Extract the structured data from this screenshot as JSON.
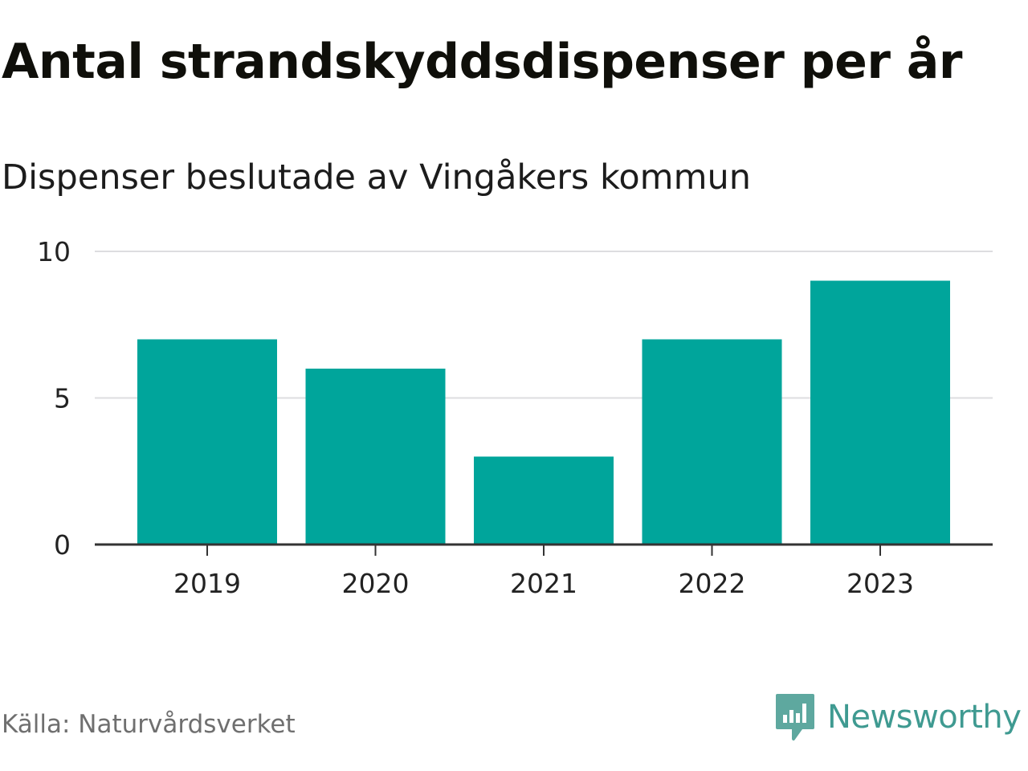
{
  "colors": {
    "bar": "#00A59B",
    "grid": "#dddde0",
    "axis": "#333333",
    "tick_text": "#222222",
    "brand": "#3f9a91"
  },
  "chart_data": {
    "type": "bar",
    "title": "Antal strandskyddsdispenser per år",
    "subtitle": "Dispenser beslutade av Vingåkers kommun",
    "categories": [
      "2019",
      "2020",
      "2021",
      "2022",
      "2023"
    ],
    "values": [
      7,
      6,
      3,
      7,
      9
    ],
    "ylim": [
      0,
      10
    ],
    "yticks": [
      0,
      5,
      10
    ],
    "ytick_labels": [
      "0",
      "5",
      "10"
    ],
    "xlabel": "",
    "ylabel": "",
    "grid": true
  },
  "footer": {
    "source": "Källa: Naturvårdsverket",
    "brand_name": "Newsworthy",
    "brand_icon": "newsworthy-logo-icon"
  }
}
